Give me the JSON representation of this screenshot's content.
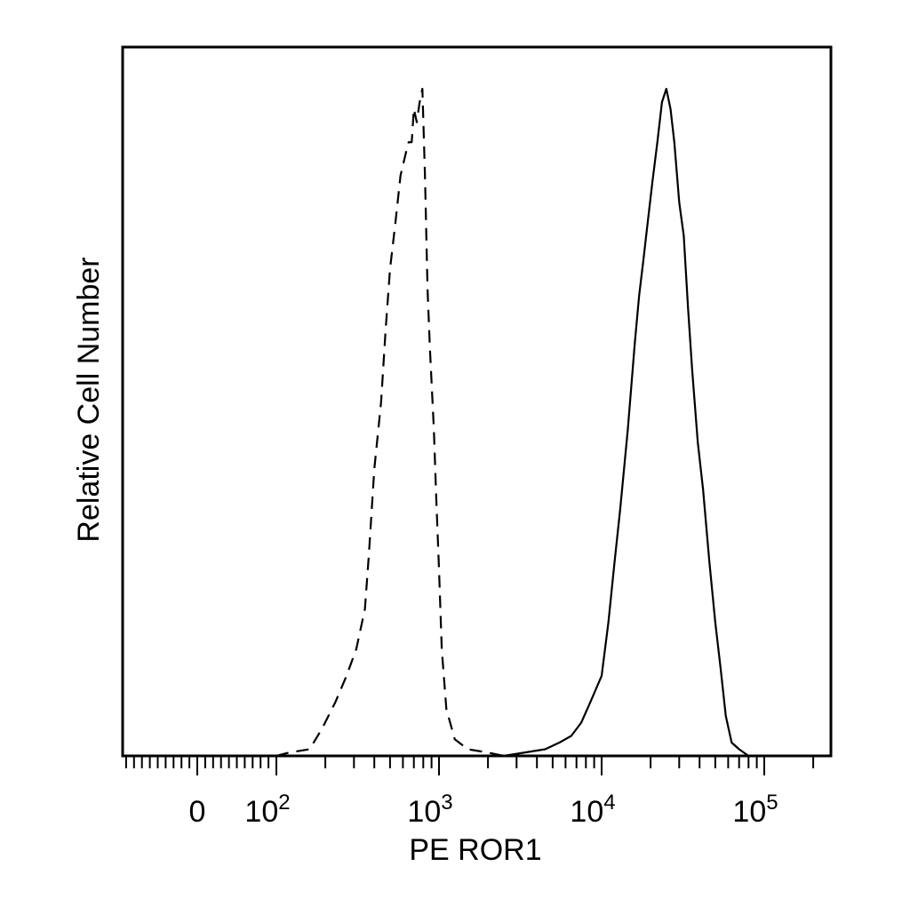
{
  "chart_data": {
    "type": "line",
    "title": "",
    "xlabel": "PE ROR1",
    "ylabel": "Relative Cell Number",
    "x_scale": "biexponential (linear near 0, log above ~100)",
    "xlim": [
      -250,
      250000
    ],
    "ylim": [
      0,
      1
    ],
    "grid": false,
    "legend": "none",
    "x_tick_labels": [
      {
        "value": 0,
        "base": "0",
        "exp": ""
      },
      {
        "value": 100,
        "base": "10",
        "exp": "2"
      },
      {
        "value": 1000,
        "base": "10",
        "exp": "3"
      },
      {
        "value": 10000,
        "base": "10",
        "exp": "4"
      },
      {
        "value": 100000,
        "base": "10",
        "exp": "5"
      }
    ],
    "series": [
      {
        "style": "dashed",
        "color": "#000000",
        "points": [
          [
            100,
            0.0
          ],
          [
            120,
            0.005
          ],
          [
            160,
            0.01
          ],
          [
            190,
            0.04
          ],
          [
            230,
            0.08
          ],
          [
            270,
            0.12
          ],
          [
            310,
            0.16
          ],
          [
            350,
            0.22
          ],
          [
            370,
            0.3
          ],
          [
            400,
            0.43
          ],
          [
            440,
            0.53
          ],
          [
            470,
            0.64
          ],
          [
            500,
            0.73
          ],
          [
            540,
            0.8
          ],
          [
            580,
            0.87
          ],
          [
            620,
            0.9
          ],
          [
            650,
            0.92
          ],
          [
            680,
            0.92
          ],
          [
            700,
            0.97
          ],
          [
            730,
            0.95
          ],
          [
            760,
            0.98
          ],
          [
            790,
            1.0
          ],
          [
            820,
            0.87
          ],
          [
            850,
            0.7
          ],
          [
            880,
            0.61
          ],
          [
            930,
            0.49
          ],
          [
            960,
            0.39
          ],
          [
            1000,
            0.28
          ],
          [
            1040,
            0.16
          ],
          [
            1110,
            0.07
          ],
          [
            1250,
            0.025
          ],
          [
            1500,
            0.01
          ],
          [
            2000,
            0.005
          ],
          [
            2500,
            0.0
          ],
          [
            100000,
            0.0
          ]
        ]
      },
      {
        "style": "solid",
        "color": "#000000",
        "points": [
          [
            2500,
            0.0
          ],
          [
            4500,
            0.01
          ],
          [
            5500,
            0.02
          ],
          [
            6500,
            0.03
          ],
          [
            7500,
            0.05
          ],
          [
            8500,
            0.08
          ],
          [
            10000,
            0.12
          ],
          [
            11000,
            0.2
          ],
          [
            12000,
            0.29
          ],
          [
            13000,
            0.37
          ],
          [
            14500,
            0.49
          ],
          [
            16000,
            0.62
          ],
          [
            17000,
            0.69
          ],
          [
            18000,
            0.74
          ],
          [
            19000,
            0.79
          ],
          [
            20500,
            0.86
          ],
          [
            22000,
            0.92
          ],
          [
            23500,
            0.98
          ],
          [
            25000,
            1.0
          ],
          [
            26500,
            0.97
          ],
          [
            28000,
            0.92
          ],
          [
            30000,
            0.83
          ],
          [
            32000,
            0.78
          ],
          [
            34000,
            0.67
          ],
          [
            36000,
            0.58
          ],
          [
            39000,
            0.47
          ],
          [
            42000,
            0.4
          ],
          [
            46000,
            0.29
          ],
          [
            50000,
            0.2
          ],
          [
            54000,
            0.13
          ],
          [
            58000,
            0.06
          ],
          [
            63000,
            0.02
          ],
          [
            70000,
            0.01
          ],
          [
            80000,
            0.0
          ],
          [
            250000,
            0.0
          ]
        ]
      }
    ]
  }
}
